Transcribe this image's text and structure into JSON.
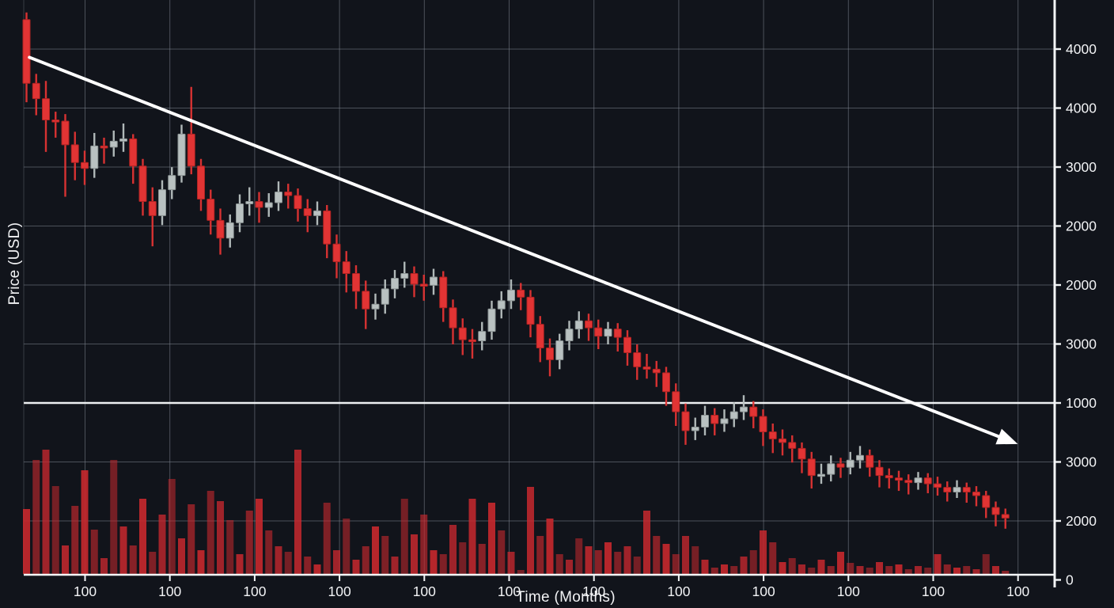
{
  "chart_data": {
    "type": "candlestick",
    "title": "",
    "xlabel": "Time (Months)",
    "ylabel": "Price (USD)",
    "x_unit": "months",
    "price_unit": "USD",
    "x_tick_labels": [
      "100",
      "100",
      "100",
      "100",
      "100",
      "100",
      "100",
      "100",
      "100",
      "100",
      "100",
      "100"
    ],
    "y_tick_labels": [
      "4000",
      "4000",
      "3000",
      "2000",
      "2000",
      "3000",
      "1000",
      "3000",
      "2000",
      "0"
    ],
    "highlight_y_tick_index": 6,
    "y_axis_side": "right",
    "grid": true,
    "candles": [
      [
        4700,
        4760,
        4000,
        4160
      ],
      [
        4160,
        4240,
        3890,
        4030
      ],
      [
        4030,
        4180,
        3580,
        3850
      ],
      [
        3850,
        3920,
        3700,
        3840
      ],
      [
        3840,
        3900,
        3200,
        3640
      ],
      [
        3640,
        3750,
        3340,
        3490
      ],
      [
        3490,
        3590,
        3300,
        3440
      ],
      [
        3440,
        3740,
        3360,
        3630
      ],
      [
        3630,
        3700,
        3480,
        3620
      ],
      [
        3620,
        3760,
        3540,
        3670
      ],
      [
        3670,
        3820,
        3580,
        3690
      ],
      [
        3690,
        3730,
        3310,
        3460
      ],
      [
        3460,
        3520,
        3040,
        3160
      ],
      [
        3160,
        3280,
        2780,
        3040
      ],
      [
        3040,
        3340,
        2960,
        3260
      ],
      [
        3260,
        3450,
        3180,
        3380
      ],
      [
        3380,
        3810,
        3320,
        3730
      ],
      [
        3730,
        4130,
        3390,
        3460
      ],
      [
        3460,
        3520,
        3080,
        3180
      ],
      [
        3180,
        3260,
        2880,
        3000
      ],
      [
        3000,
        3100,
        2710,
        2850
      ],
      [
        2850,
        3050,
        2770,
        2980
      ],
      [
        2980,
        3220,
        2900,
        3140
      ],
      [
        3140,
        3280,
        3040,
        3160
      ],
      [
        3160,
        3240,
        2980,
        3110
      ],
      [
        3110,
        3230,
        3030,
        3150
      ],
      [
        3150,
        3330,
        3080,
        3240
      ],
      [
        3240,
        3310,
        3100,
        3210
      ],
      [
        3210,
        3270,
        2990,
        3100
      ],
      [
        3100,
        3180,
        2900,
        3040
      ],
      [
        3040,
        3160,
        2960,
        3080
      ],
      [
        3080,
        3130,
        2680,
        2800
      ],
      [
        2800,
        2880,
        2510,
        2650
      ],
      [
        2650,
        2740,
        2390,
        2550
      ],
      [
        2550,
        2620,
        2250,
        2400
      ],
      [
        2400,
        2490,
        2080,
        2250
      ],
      [
        2250,
        2380,
        2160,
        2290
      ],
      [
        2290,
        2500,
        2210,
        2420
      ],
      [
        2420,
        2580,
        2340,
        2510
      ],
      [
        2510,
        2650,
        2430,
        2550
      ],
      [
        2550,
        2610,
        2350,
        2460
      ],
      [
        2460,
        2540,
        2320,
        2450
      ],
      [
        2450,
        2590,
        2370,
        2520
      ],
      [
        2520,
        2570,
        2140,
        2260
      ],
      [
        2260,
        2330,
        1950,
        2090
      ],
      [
        2090,
        2170,
        1860,
        1990
      ],
      [
        1990,
        2080,
        1830,
        1980
      ],
      [
        1980,
        2140,
        1900,
        2060
      ],
      [
        2060,
        2320,
        1990,
        2250
      ],
      [
        2250,
        2400,
        2170,
        2320
      ],
      [
        2320,
        2500,
        2250,
        2410
      ],
      [
        2410,
        2470,
        2240,
        2350
      ],
      [
        2350,
        2410,
        2010,
        2120
      ],
      [
        2120,
        2190,
        1800,
        1920
      ],
      [
        1920,
        2000,
        1680,
        1820
      ],
      [
        1820,
        2040,
        1740,
        1980
      ],
      [
        1980,
        2150,
        1900,
        2080
      ],
      [
        2080,
        2230,
        2000,
        2150
      ],
      [
        2150,
        2210,
        1980,
        2090
      ],
      [
        2090,
        2160,
        1910,
        2020
      ],
      [
        2020,
        2140,
        1950,
        2080
      ],
      [
        2080,
        2130,
        1890,
        2010
      ],
      [
        2010,
        2070,
        1770,
        1880
      ],
      [
        1880,
        1950,
        1650,
        1760
      ],
      [
        1760,
        1870,
        1660,
        1740
      ],
      [
        1740,
        1810,
        1590,
        1710
      ],
      [
        1710,
        1760,
        1430,
        1550
      ],
      [
        1550,
        1620,
        1260,
        1380
      ],
      [
        1380,
        1450,
        1100,
        1220
      ],
      [
        1220,
        1330,
        1140,
        1250
      ],
      [
        1250,
        1430,
        1180,
        1350
      ],
      [
        1350,
        1410,
        1180,
        1280
      ],
      [
        1280,
        1400,
        1210,
        1320
      ],
      [
        1320,
        1460,
        1250,
        1380
      ],
      [
        1380,
        1520,
        1310,
        1420
      ],
      [
        1420,
        1470,
        1240,
        1340
      ],
      [
        1340,
        1400,
        1090,
        1210
      ],
      [
        1210,
        1280,
        1030,
        1150
      ],
      [
        1150,
        1230,
        1010,
        1120
      ],
      [
        1120,
        1180,
        950,
        1070
      ],
      [
        1070,
        1120,
        860,
        980
      ],
      [
        980,
        1040,
        730,
        840
      ],
      [
        840,
        940,
        770,
        850
      ],
      [
        850,
        1010,
        790,
        940
      ],
      [
        940,
        990,
        820,
        910
      ],
      [
        910,
        1040,
        850,
        970
      ],
      [
        970,
        1090,
        900,
        1010
      ],
      [
        1010,
        1060,
        830,
        910
      ],
      [
        910,
        970,
        740,
        840
      ],
      [
        840,
        900,
        730,
        820
      ],
      [
        820,
        880,
        710,
        800
      ],
      [
        800,
        850,
        680,
        780
      ],
      [
        780,
        870,
        720,
        820
      ],
      [
        820,
        860,
        690,
        770
      ],
      [
        770,
        830,
        670,
        740
      ],
      [
        740,
        790,
        620,
        700
      ],
      [
        700,
        800,
        650,
        740
      ],
      [
        740,
        780,
        610,
        700
      ],
      [
        700,
        750,
        580,
        670
      ],
      [
        670,
        710,
        480,
        570
      ],
      [
        570,
        620,
        410,
        510
      ],
      [
        510,
        560,
        390,
        480
      ]
    ],
    "volumes": [
      82,
      144,
      157,
      111,
      36,
      86,
      131,
      56,
      20,
      144,
      60,
      36,
      95,
      28,
      75,
      120,
      45,
      88,
      30,
      105,
      92,
      68,
      25,
      80,
      95,
      55,
      35,
      28,
      157,
      22,
      12,
      90,
      30,
      70,
      18,
      35,
      60,
      48,
      22,
      95,
      50,
      75,
      30,
      25,
      62,
      40,
      95,
      38,
      90,
      55,
      28,
      5,
      110,
      48,
      70,
      25,
      18,
      45,
      35,
      30,
      40,
      28,
      35,
      22,
      80,
      48,
      38,
      25,
      48,
      35,
      18,
      8,
      12,
      10,
      22,
      30,
      55,
      40,
      15,
      20,
      12,
      8,
      18,
      10,
      28,
      14,
      10,
      8,
      15,
      10,
      12,
      6,
      10,
      8,
      25,
      12,
      8,
      10,
      6,
      25,
      10,
      4
    ],
    "trendline": {
      "start": {
        "month": 0.3,
        "price": 4380
      },
      "end": {
        "month": 100.3,
        "price": 1170
      }
    }
  },
  "colors": {
    "background": "#11141b",
    "grid": "#7d838e",
    "highlight_line": "#eef0f2",
    "axis": "#f3f5f7",
    "text": "#f2f3f5",
    "bearish": "#e23434",
    "bearish_stroke": "#b02323",
    "bullish": "#b9c1c1",
    "bullish_stroke": "#8c9494",
    "volume": "#c8282e",
    "trendline": "#ffffff"
  }
}
